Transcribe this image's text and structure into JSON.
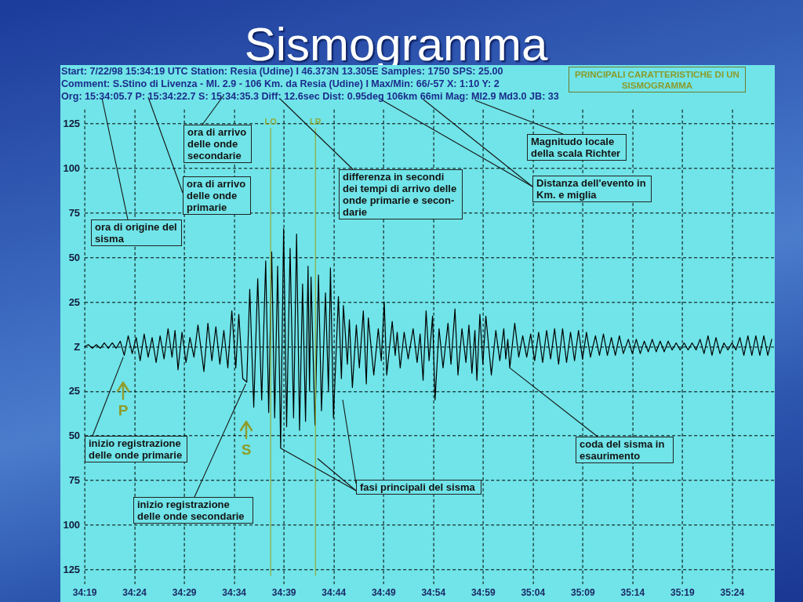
{
  "chart_data": {
    "type": "line",
    "title": "Sismogramma",
    "subtitle": "PRINCIPALI CARATTERISTICHE DI UN SISMOGRAMMA",
    "annotations": [
      "Start: 7/22/98 15:34:19 UTC Station: Resia (Udine) I 46.373N 13.305E Samples: 1750  SPS: 25.00",
      "Comment: S.Stino di Livenza - Ml. 2.9 - 106 Km. da Resia (Udine) I  Max/Min: 66/-57 X: 1:10 Y: 2",
      "Org: 15:34:05.7 P: 15:34:22.7 S: 15:34:35.3 Diff: 12.6sec Dist: 0.95deg 106km 66mi  Mag: Ml2.9 Md3.0 JB: 33",
      "ora di arrivo delle onde secondarie",
      "ora di arrivo delle onde primarie",
      "ora di origine del sisma",
      "differenza in secondi dei tempi di arrivo delle onde primarie e secon-darie",
      "Distanza dell'evento in Km. e miglia",
      "Magnitudo locale della scala Richter",
      {
        "text": "inizio registrazione delle onde primarie",
        "x": 2062.9,
        "y": -6
      },
      {
        "text": "inizio registrazione delle onde secondarie",
        "x": 2075.2,
        "y": -21
      },
      {
        "text": "fasi principali del sisma",
        "x": 2078.7,
        "y": -57
      },
      {
        "text": "coda del sisma in esaurimento",
        "x": 2101.7,
        "y": -12
      },
      "P",
      "S"
    ],
    "x": [
      2059.0,
      2059.4,
      2059.8,
      2060.2,
      2060.6,
      2061.0,
      2061.4,
      2061.8,
      2062.2,
      2062.6,
      2063.0,
      2063.4,
      2063.8,
      2064.2,
      2064.6,
      2065.0,
      2065.4,
      2065.8,
      2066.2,
      2066.6,
      2067.0,
      2067.4,
      2067.8,
      2068.1,
      2068.4,
      2068.8,
      2069.2,
      2069.6,
      2070.0,
      2070.4,
      2071.0,
      2071.4,
      2071.8,
      2072.2,
      2072.6,
      2073.0,
      2073.4,
      2073.8,
      2074.2,
      2074.5,
      2074.9,
      2075.3,
      2075.6,
      2076.0,
      2076.4,
      2076.8,
      2077.2,
      2077.5,
      2077.8,
      2078.1,
      2078.4,
      2078.7,
      2079.0,
      2079.3,
      2079.65,
      2080.0,
      2080.3,
      2080.6,
      2080.9,
      2081.2,
      2081.45,
      2081.6,
      2081.75,
      2082.15,
      2082.5,
      2082.8,
      2083.2,
      2083.5,
      2083.7,
      2084.0,
      2084.5,
      2084.8,
      2085.0,
      2085.4,
      2085.6,
      2085.9,
      2086.3,
      2086.6,
      2087.0,
      2087.3,
      2087.5,
      2088.05,
      2088.5,
      2088.8,
      2089.1,
      2089.35,
      2089.9,
      2090.2,
      2090.4,
      2090.7,
      2091.1,
      2091.5,
      2092.0,
      2092.4,
      2092.7,
      2093.0,
      2093.3,
      2093.6,
      2093.95,
      2094.2,
      2094.6,
      2095.0,
      2095.5,
      2095.8,
      2096.2,
      2096.5,
      2096.9,
      2097.3,
      2097.6,
      2097.9,
      2098.2,
      2098.4,
      2098.7,
      2099.0,
      2099.3,
      2099.85,
      2100.3,
      2100.7,
      2101.1,
      2101.3,
      2101.5,
      2101.7,
      2102.2,
      2102.6,
      2103.0,
      2103.4,
      2103.8,
      2104.2,
      2104.6,
      2105.0,
      2105.4,
      2105.8,
      2106.2,
      2106.6,
      2107.0,
      2107.4,
      2107.8,
      2108.2,
      2108.6,
      2109.0,
      2109.4,
      2109.8,
      2110.3,
      2110.7,
      2111.1,
      2111.5,
      2111.9,
      2112.3,
      2112.7,
      2113.1,
      2113.6,
      2114.0,
      2114.4,
      2114.8,
      2115.2,
      2115.6,
      2116.0,
      2116.4,
      2116.8,
      2117.2,
      2117.6,
      2118.0,
      2118.4,
      2118.8,
      2119.2,
      2119.6,
      2120.0,
      2120.4,
      2120.8,
      2121.2,
      2121.6,
      2122.0,
      2122.4,
      2122.8,
      2123.2,
      2123.6,
      2124.0,
      2124.4,
      2124.8,
      2125.2,
      2125.6,
      2126.0,
      2126.4,
      2126.8,
      2127.2,
      2127.6,
      2128.0
    ],
    "values": [
      0,
      1,
      -1,
      1,
      -1,
      2,
      -1,
      2,
      -1,
      3,
      -5,
      6,
      -4,
      5,
      -8,
      7,
      -6,
      5,
      -9,
      6,
      -7,
      10,
      -6,
      9,
      -13,
      8,
      -9,
      5,
      -6,
      12,
      -14,
      13,
      -8,
      11,
      -10,
      9,
      -12,
      20,
      -12,
      18,
      -18,
      -20,
      32,
      -34,
      38,
      -30,
      48,
      -37,
      53,
      -40,
      45,
      -57,
      66,
      -45,
      55,
      -40,
      63,
      -47,
      35,
      -42,
      45,
      -25,
      39,
      -44,
      40,
      -36,
      30,
      -25,
      44,
      -40,
      28,
      -18,
      23,
      -10,
      15,
      -23,
      12,
      -12,
      20,
      -21,
      16,
      -16,
      10,
      -8,
      25,
      -16,
      14,
      -5,
      8,
      -12,
      8,
      -7,
      10,
      -9,
      7,
      -19,
      20,
      -8,
      17,
      -30,
      10,
      -12,
      13,
      -10,
      21,
      -16,
      10,
      -9,
      12,
      -15,
      9,
      -19,
      18,
      -10,
      17,
      -16,
      9,
      -8,
      10,
      -7,
      4,
      -12,
      13,
      -6,
      6,
      -6,
      7,
      -8,
      8,
      -9,
      9,
      -7,
      10,
      -10,
      10,
      -9,
      8,
      -8,
      9,
      -7,
      8,
      -6,
      6,
      -5,
      7,
      -5,
      5,
      -5,
      6,
      -4,
      4,
      -4,
      4,
      -4,
      3,
      -3,
      4,
      -3,
      3,
      -3,
      3,
      -2,
      2,
      -2,
      2,
      -2,
      2,
      -2,
      4,
      -4,
      6,
      -5,
      5,
      -4,
      2,
      -2,
      2,
      -2,
      5,
      -5,
      6,
      -5,
      6,
      -5,
      6,
      -5,
      4
    ],
    "color": "#000000",
    "xlim": [
      2059,
      2128.3
    ],
    "xticks": [
      {
        "value": 2059,
        "label": "34:19"
      },
      {
        "value": 2064,
        "label": "34:24"
      },
      {
        "value": 2069,
        "label": "34:29"
      },
      {
        "value": 2074,
        "label": "34:34"
      },
      {
        "value": 2079,
        "label": "34:39"
      },
      {
        "value": 2084,
        "label": "34:44"
      },
      {
        "value": 2089,
        "label": "34:49"
      },
      {
        "value": 2094,
        "label": "34:54"
      },
      {
        "value": 2099,
        "label": "34:59"
      },
      {
        "value": 2104,
        "label": "35:04"
      },
      {
        "value": 2109,
        "label": "35:09"
      },
      {
        "value": 2114,
        "label": "35:14"
      },
      {
        "value": 2119,
        "label": "35:19"
      },
      {
        "value": 2124,
        "label": "35:24"
      }
    ],
    "ylim": [
      -133,
      133
    ],
    "yticks": [
      {
        "value": -125,
        "label": "125"
      },
      {
        "value": -100,
        "label": "100"
      },
      {
        "value": -75,
        "label": "75"
      },
      {
        "value": -50,
        "label": "50"
      },
      {
        "value": -25,
        "label": "25"
      },
      {
        "value": 0,
        "label": "Z"
      },
      25,
      50,
      75,
      100,
      125
    ],
    "grid": true,
    "ref_lines": [
      {
        "axis": "x",
        "value": 2077.7,
        "label": "LO",
        "color": "#90ac3c"
      },
      {
        "axis": "x",
        "value": 2082.2,
        "label": "LR",
        "color": "#90ac3c"
      }
    ]
  }
}
